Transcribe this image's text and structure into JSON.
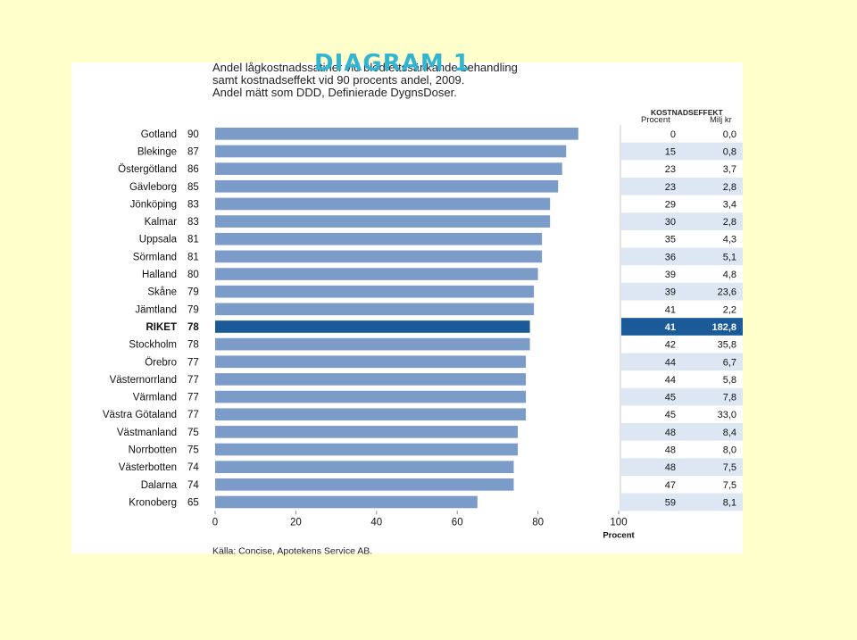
{
  "slide_title": "DIAGRAM 1",
  "chart_data": {
    "type": "bar",
    "orientation": "horizontal",
    "subtitle_lines": [
      "Andel lågkostnadssatiner vid blodfettssänkande behandling",
      "samt kostnadseffekt vid 90 procents andel, 2009.",
      "Andel mätt som DDD, Definierade DygnsDoser."
    ],
    "source": "Källa: Concise, Apotekens Service AB.",
    "xlabel": "Procent",
    "xlim": [
      0,
      100
    ],
    "xticks": [
      "0",
      "20",
      "40",
      "60",
      "80",
      "100"
    ],
    "grid": false,
    "categories": [
      "Gotland",
      "Blekinge",
      "Östergötland",
      "Gävleborg",
      "Jönköping",
      "Kalmar",
      "Uppsala",
      "Sörmland",
      "Halland",
      "Skåne",
      "Jämtland",
      "RIKET",
      "Stockholm",
      "Örebro",
      "Västernorrland",
      "Värmland",
      "Västra Götaland",
      "Västmanland",
      "Norrbotten",
      "Västerbotten",
      "Dalarna",
      "Kronoberg"
    ],
    "values": [
      90,
      87,
      86,
      85,
      83,
      83,
      81,
      81,
      80,
      79,
      79,
      78,
      78,
      77,
      77,
      77,
      77,
      75,
      75,
      74,
      74,
      65
    ],
    "value_labels": [
      "90",
      "87",
      "86",
      "85",
      "83",
      "83",
      "81",
      "81",
      "80",
      "79",
      "79",
      "78",
      "78",
      "77",
      "77",
      "77",
      "77",
      "75",
      "75",
      "74",
      "74",
      "65"
    ],
    "highlight_category": "RIKET",
    "colors": {
      "bar": "#7b9cc8",
      "highlight": "#1a5a98",
      "stripe": "#dce7f3",
      "highlight_text": "#ffffff"
    },
    "table": {
      "group_header": "KOSTNADSEFFEKT",
      "columns": [
        "Procent",
        "Milj kr"
      ],
      "procent": [
        "0",
        "15",
        "23",
        "23",
        "29",
        "30",
        "35",
        "36",
        "39",
        "39",
        "41",
        "41",
        "42",
        "44",
        "44",
        "45",
        "45",
        "48",
        "48",
        "48",
        "47",
        "59"
      ],
      "milj_kr": [
        "0,0",
        "0,8",
        "3,7",
        "2,8",
        "3,4",
        "2,8",
        "4,3",
        "5,1",
        "4,8",
        "23,6",
        "2,2",
        "182,8",
        "35,8",
        "6,7",
        "5,8",
        "7,8",
        "33,0",
        "8,4",
        "8,0",
        "7,5",
        "7,5",
        "8,1"
      ]
    }
  }
}
